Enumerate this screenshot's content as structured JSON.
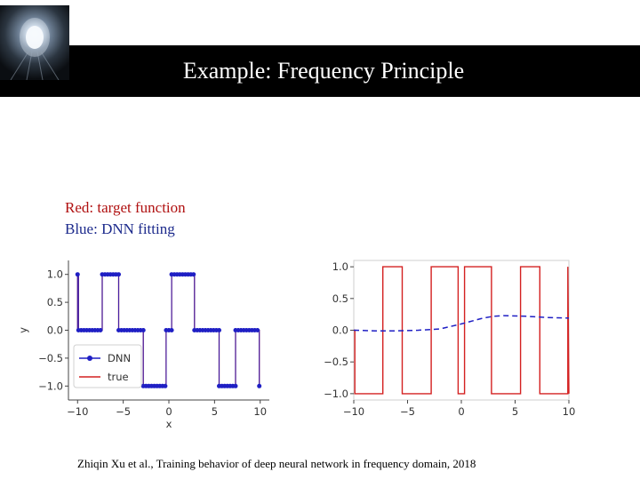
{
  "slide": {
    "title": "Example: Frequency Principle",
    "legend_red": "Red: target function",
    "legend_blue": "Blue: DNN fitting",
    "citation": "Zhiqin Xu et al., Training behavior of deep neural network in frequency domain, 2018"
  },
  "logo": {
    "icon": "light-tunnel-icon"
  },
  "colors": {
    "target": "#d42020",
    "dnn": "#1f1fc4",
    "title_bar": "#000000"
  },
  "chart_data": [
    {
      "type": "line",
      "xlabel": "x",
      "ylabel": "y",
      "xlim": [
        -11,
        11
      ],
      "ylim": [
        -1.25,
        1.25
      ],
      "xticks": [
        -10,
        -5,
        0,
        5,
        10
      ],
      "xtick_labels": [
        "−10",
        "−5",
        "0",
        "5",
        "10"
      ],
      "yticks": [
        1.0,
        0.5,
        0.0,
        -0.5,
        -1.0
      ],
      "ytick_labels": [
        "1.0",
        "0.5",
        "0.0",
        "−0.5",
        "−1.0"
      ],
      "legend": {
        "placement": "lower-left",
        "entries": [
          "DNN",
          "true"
        ]
      },
      "series": [
        {
          "name": "true",
          "style": "solid",
          "x": [
            -10,
            -10,
            -9.9,
            -9.9,
            -7.3,
            -7.3,
            -5.5,
            -5.5,
            -2.8,
            -2.8,
            -0.3,
            -0.3,
            0.3,
            0.3,
            2.8,
            2.8,
            5.5,
            5.5,
            7.3,
            7.3,
            9.9,
            9.9,
            10
          ],
          "y": [
            0.0,
            1.0,
            1.0,
            0.0,
            0.0,
            1.0,
            1.0,
            0.0,
            0.0,
            -1.0,
            -1.0,
            0.0,
            0.0,
            1.0,
            1.0,
            0.0,
            0.0,
            -1.0,
            -1.0,
            0.0,
            0.0,
            -1.0,
            -1.0
          ]
        },
        {
          "name": "DNN",
          "style": "markers",
          "x": [
            -10,
            -10,
            -9.9,
            -9.9,
            -7.3,
            -7.3,
            -5.5,
            -5.5,
            -2.8,
            -2.8,
            -0.3,
            -0.3,
            0.3,
            0.3,
            2.8,
            2.8,
            5.5,
            5.5,
            7.3,
            7.3,
            9.9,
            9.9,
            10
          ],
          "y": [
            0.0,
            1.0,
            1.0,
            0.0,
            0.0,
            1.0,
            1.0,
            0.0,
            0.0,
            -1.0,
            -1.0,
            0.0,
            0.0,
            1.0,
            1.0,
            0.0,
            0.0,
            -1.0,
            -1.0,
            0.0,
            0.0,
            -1.0,
            -1.0
          ]
        }
      ]
    },
    {
      "type": "line",
      "xlabel": "",
      "ylabel": "",
      "xlim": [
        -10,
        10
      ],
      "ylim": [
        -1.1,
        1.1
      ],
      "xticks": [
        -10,
        -5,
        0,
        5,
        10
      ],
      "xtick_labels": [
        "−10",
        "−5",
        "0",
        "5",
        "10"
      ],
      "yticks": [
        1.0,
        0.5,
        0.0,
        -0.5,
        -1.0
      ],
      "ytick_labels": [
        "1.0",
        "0.5",
        "0.0",
        "−0.5",
        "−1.0"
      ],
      "series": [
        {
          "name": "",
          "style": "solid",
          "x": [
            -10,
            -10,
            -9.9,
            -9.9,
            -7.3,
            -7.3,
            -5.5,
            -5.5,
            -2.8,
            -2.8,
            -0.3,
            -0.3,
            0.3,
            0.3,
            2.8,
            2.8,
            5.5,
            5.5,
            7.3,
            7.3,
            9.9,
            9.9,
            10
          ],
          "y": [
            0.0,
            0.0,
            0.0,
            -1.0,
            -1.0,
            1.0,
            1.0,
            -1.0,
            -1.0,
            1.0,
            1.0,
            -1.0,
            -1.0,
            1.0,
            1.0,
            -1.0,
            -1.0,
            1.0,
            1.0,
            -1.0,
            -1.0,
            1.0,
            -1.0
          ]
        },
        {
          "name": "",
          "style": "dashed",
          "x": [
            -10,
            -8,
            -6,
            -4,
            -2,
            0,
            2,
            3,
            4,
            6,
            8,
            10
          ],
          "y": [
            0.0,
            -0.01,
            -0.01,
            0.0,
            0.02,
            0.1,
            0.19,
            0.22,
            0.23,
            0.22,
            0.2,
            0.19
          ]
        }
      ]
    }
  ]
}
